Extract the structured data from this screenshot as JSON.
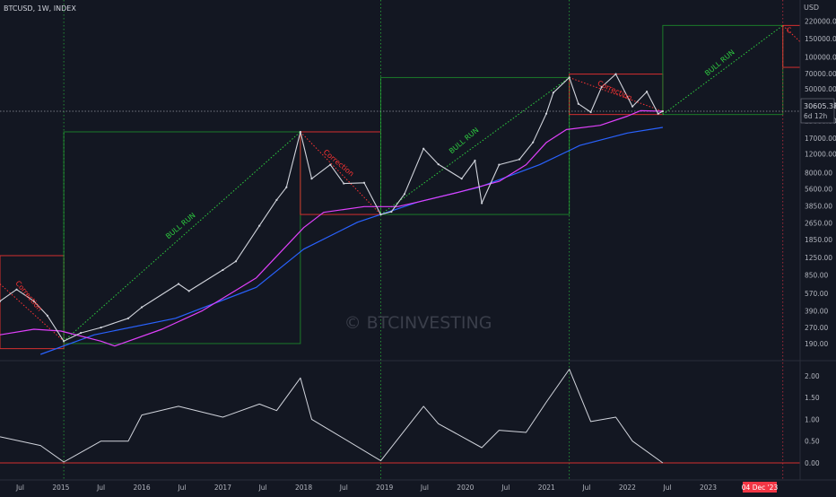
{
  "header": {
    "symbol": "BTCUSD, 1W, INDEX"
  },
  "watermark": "© BTCINVESTING",
  "price_axis": {
    "currency": "USD",
    "labels": [
      "220000.00",
      "150000.00",
      "100000.00",
      "70000.00",
      "50000.00",
      "35000.00",
      "25000.00",
      "17000.00",
      "12000.00",
      "8000.00",
      "5600.00",
      "3850.00",
      "2650.00",
      "1850.00",
      "1250.00",
      "850.00",
      "570.00",
      "390.00",
      "270.00",
      "190.00"
    ],
    "current_price": "30605.38",
    "countdown": "6d 12h"
  },
  "osc_axis": {
    "labels": [
      "2.00",
      "1.50",
      "1.00",
      "0.50",
      "0.00"
    ]
  },
  "time_axis": {
    "labels": [
      "Jul",
      "2015",
      "Jul",
      "2016",
      "Jul",
      "2017",
      "Jul",
      "2018",
      "Jul",
      "2019",
      "Jul",
      "2020",
      "Jul",
      "2021",
      "Jul",
      "2022",
      "Jul",
      "2023",
      "Jul"
    ],
    "highlight_label": "04 Dec '23"
  },
  "annotations": {
    "bull_run": "BULL RUN",
    "correction": "Correction"
  },
  "colors": {
    "background": "#131722",
    "candle": "#d1d4dc",
    "ma_long": "#2962ff",
    "ma_short": "#e040fb",
    "bull_box": "#1b7a2a",
    "bear_box": "#d32f2f",
    "bull_text": "#2ecc40",
    "bear_text": "#ff3333",
    "highlight": "#f23645"
  },
  "chart_data": [
    {
      "type": "line",
      "title": "BTCUSD, 1W, INDEX",
      "ylabel": "USD",
      "scale": "log",
      "ylim": [
        150,
        260000
      ],
      "xlim": [
        "2014-04-01",
        "2024-02-20"
      ],
      "grid": false,
      "series": [
        {
          "name": "",
          "role": "price",
          "x": [
            "2014-04-01",
            "2014-06-15",
            "2014-09-01",
            "2014-11-01",
            "2015-01-14",
            "2015-04-01",
            "2015-07-01",
            "2015-11-01",
            "2016-01-01",
            "2016-06-15",
            "2016-08-01",
            "2017-01-01",
            "2017-03-01",
            "2017-06-15",
            "2017-09-01",
            "2017-10-15",
            "2017-12-17",
            "2018-02-06",
            "2018-05-01",
            "2018-07-01",
            "2018-10-01",
            "2018-12-15",
            "2019-02-01",
            "2019-04-01",
            "2019-06-26",
            "2019-09-01",
            "2019-12-15",
            "2020-02-13",
            "2020-03-15",
            "2020-06-01",
            "2020-09-01",
            "2020-11-01",
            "2020-12-31",
            "2021-02-01",
            "2021-04-14",
            "2021-05-25",
            "2021-07-20",
            "2021-09-07",
            "2021-11-10",
            "2022-01-24",
            "2022-03-30",
            "2022-05-20",
            "2022-06-10"
          ],
          "values": [
            480,
            620,
            480,
            350,
            200,
            240,
            270,
            330,
            420,
            700,
            600,
            950,
            1150,
            2500,
            4400,
            5800,
            19500,
            7000,
            9500,
            6300,
            6400,
            3200,
            3400,
            5000,
            13500,
            9600,
            7000,
            10400,
            4100,
            9500,
            10700,
            15500,
            29000,
            46000,
            64000,
            36000,
            30000,
            52000,
            69000,
            34000,
            47000,
            29000,
            30605
          ]
        },
        {
          "name": "",
          "role": "ma-long",
          "x": [
            "2014-10-01",
            "2015-06-01",
            "2016-06-01",
            "2017-06-01",
            "2018-01-01",
            "2018-09-01",
            "2019-06-01",
            "2020-03-01",
            "2020-12-01",
            "2021-06-01",
            "2022-01-01",
            "2022-06-10"
          ],
          "values": [
            150,
            230,
            330,
            650,
            1500,
            2700,
            4200,
            5800,
            9500,
            14500,
            19000,
            21500
          ]
        },
        {
          "name": "",
          "role": "ma-short",
          "x": [
            "2014-04-01",
            "2014-09-01",
            "2015-01-01",
            "2015-07-01",
            "2015-09-01",
            "2016-04-01",
            "2016-10-01",
            "2017-06-01",
            "2018-01-01",
            "2018-04-01",
            "2018-10-01",
            "2019-03-01",
            "2019-06-01",
            "2019-12-01",
            "2020-06-01",
            "2020-10-01",
            "2021-01-01",
            "2021-04-01",
            "2021-09-01",
            "2022-01-01",
            "2022-03-01",
            "2022-06-10"
          ],
          "values": [
            230,
            260,
            250,
            200,
            180,
            260,
            390,
            800,
            2400,
            3350,
            3800,
            3800,
            4200,
            5200,
            6600,
            9500,
            15500,
            20500,
            22500,
            27500,
            31000,
            30605
          ]
        },
        {
          "name": "",
          "role": "oscillator",
          "ylim": [
            0,
            2.1
          ],
          "x": [
            "2014-04-01",
            "2014-10-01",
            "2015-01-14",
            "2015-07-01",
            "2015-11-01",
            "2016-01-01",
            "2016-06-15",
            "2017-01-01",
            "2017-06-15",
            "2017-09-01",
            "2017-12-17",
            "2018-02-06",
            "2018-06-01",
            "2018-12-15",
            "2019-06-26",
            "2019-09-01",
            "2020-03-15",
            "2020-06-01",
            "2020-10-01",
            "2021-01-01",
            "2021-04-14",
            "2021-07-20",
            "2021-11-10",
            "2022-01-24",
            "2022-06-10"
          ],
          "values": [
            0.6,
            0.4,
            0.02,
            0.5,
            0.5,
            1.1,
            1.3,
            1.05,
            1.35,
            1.2,
            1.95,
            1.0,
            0.65,
            0.05,
            1.3,
            0.9,
            0.35,
            0.75,
            0.7,
            1.4,
            2.15,
            0.95,
            1.05,
            0.5,
            0.0
          ]
        }
      ],
      "boxes": [
        {
          "kind": "correction",
          "x": [
            "2014-04-01",
            "2015-01-14"
          ],
          "y": [
            170,
            1300
          ]
        },
        {
          "kind": "bull",
          "x": [
            "2015-01-14",
            "2017-12-17"
          ],
          "y": [
            190,
            19500
          ]
        },
        {
          "kind": "correction",
          "x": [
            "2017-12-17",
            "2018-12-15"
          ],
          "y": [
            3200,
            19500
          ]
        },
        {
          "kind": "bull",
          "x": [
            "2018-12-15",
            "2021-04-14"
          ],
          "y": [
            3200,
            64000
          ]
        },
        {
          "kind": "correction",
          "x": [
            "2021-04-14",
            "2022-06-10"
          ],
          "y": [
            28500,
            69000
          ]
        },
        {
          "kind": "bull",
          "x": [
            "2022-06-10",
            "2023-12-04"
          ],
          "y": [
            28500,
            200000
          ]
        },
        {
          "kind": "correction",
          "x": [
            "2023-12-04",
            "2024-02-20"
          ],
          "y": [
            80000,
            200000
          ]
        }
      ],
      "trend_lines": [
        {
          "kind": "bull",
          "x": [
            "2015-01-14",
            "2017-12-17"
          ],
          "y": [
            200,
            19500
          ]
        },
        {
          "kind": "bull",
          "x": [
            "2018-12-15",
            "2021-04-14"
          ],
          "y": [
            3200,
            64000
          ]
        },
        {
          "kind": "bull",
          "x": [
            "2022-06-10",
            "2023-12-04"
          ],
          "y": [
            28500,
            200000
          ]
        },
        {
          "kind": "correction",
          "x": [
            "2014-04-01",
            "2015-01-14"
          ],
          "y": [
            700,
            200
          ]
        },
        {
          "kind": "correction",
          "x": [
            "2017-12-17",
            "2018-12-15"
          ],
          "y": [
            19500,
            3200
          ]
        },
        {
          "kind": "correction",
          "x": [
            "2021-04-14",
            "2022-06-10"
          ],
          "y": [
            64000,
            30605
          ]
        },
        {
          "kind": "correction",
          "x": [
            "2023-12-04",
            "2024-02-20"
          ],
          "y": [
            200000,
            140000
          ]
        }
      ],
      "vertical_markers": [
        {
          "x": "2015-01-14",
          "color": "green"
        },
        {
          "x": "2018-12-15",
          "color": "green"
        },
        {
          "x": "2021-04-14",
          "color": "green"
        },
        {
          "x": "2023-12-04",
          "color": "red"
        }
      ],
      "labels": [
        {
          "text": "BULL RUN",
          "x": "2016-07-01",
          "y": 2400,
          "rotate": -40
        },
        {
          "text": "BULL RUN",
          "x": "2020-01-01",
          "y": 15500,
          "rotate": -40
        },
        {
          "text": "BULL RUN",
          "x": "2023-03-01",
          "y": 85000,
          "rotate": -40
        },
        {
          "text": "Correction",
          "x": "2014-08-01",
          "y": 520,
          "rotate": 50
        },
        {
          "text": "Correction",
          "x": "2018-06-01",
          "y": 9500,
          "rotate": 40
        },
        {
          "text": "Correction",
          "x": "2021-11-01",
          "y": 46000,
          "rotate": 25
        },
        {
          "text": "C",
          "x": "2024-01-01",
          "y": 170000,
          "rotate": 0
        }
      ]
    }
  ]
}
